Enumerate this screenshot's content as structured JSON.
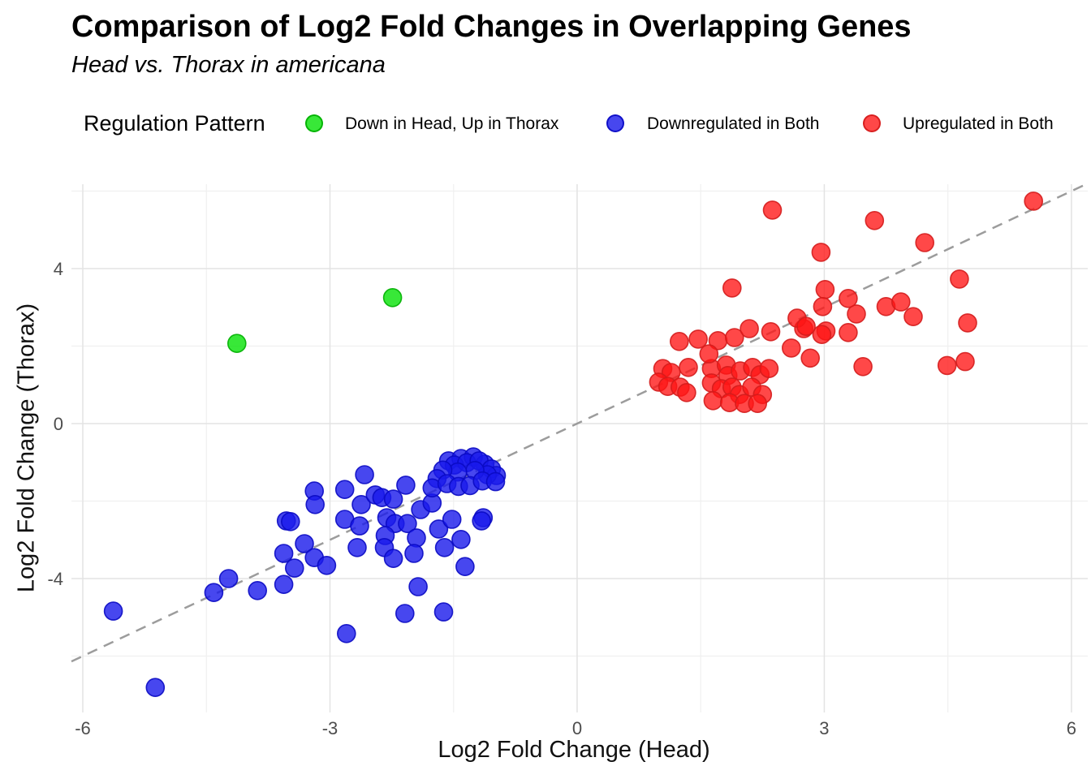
{
  "header": {
    "title": "Comparison of Log2 Fold Changes in Overlapping Genes",
    "subtitle": "Head vs. Thorax in americana"
  },
  "legend": {
    "title": "Regulation Pattern",
    "items": [
      {
        "label": "Down in Head, Up in Thorax",
        "color": "rgba(0,225,0,0.78)",
        "border": "rgba(0,175,0,0.9)"
      },
      {
        "label": "Downregulated in Both",
        "color": "rgba(25,25,235,0.8)",
        "border": "rgba(10,10,195,0.9)"
      },
      {
        "label": "Upregulated in Both",
        "color": "rgba(255,20,20,0.78)",
        "border": "rgba(212,28,28,0.9)"
      }
    ]
  },
  "axes": {
    "x": {
      "label": "Log2 Fold Change (Head)",
      "tick_labels": [
        "-6",
        "-3",
        "0",
        "3",
        "6"
      ]
    },
    "y": {
      "label": "Log2 Fold Change (Thorax)",
      "tick_labels": [
        "4",
        "0",
        "-4"
      ]
    }
  },
  "chart_data": {
    "type": "scatter",
    "title": "Comparison of Log2 Fold Changes in Overlapping Genes",
    "subtitle": "Head vs. Thorax in americana",
    "xlabel": "Log2 Fold Change (Head)",
    "ylabel": "Log2 Fold Change (Thorax)",
    "legend_title": "Regulation Pattern",
    "legend_position": "top",
    "grid": true,
    "xlim": [
      -6.138,
      6.198
    ],
    "ylim": [
      -7.455,
      6.178
    ],
    "x_ticks": [
      -6,
      -3,
      0,
      3,
      6
    ],
    "y_ticks": [
      4,
      0,
      -4
    ],
    "x_minor_gridlines": [
      -4.5,
      -1.5,
      1.5,
      4.5
    ],
    "y_minor_gridlines": [
      6,
      2,
      -2,
      -6
    ],
    "grid_major_color": "#e3e3e3",
    "grid_minor_color": "#f0f0f0",
    "reference_line": {
      "slope": 1,
      "intercept": 0,
      "style": "dashed",
      "color": "#9c9c9c",
      "width": 2.5,
      "dash": [
        13,
        9
      ]
    },
    "point_radius": 11,
    "series": [
      {
        "name": "Down in Head, Up in Thorax",
        "fill": "rgba(0,225,0,0.78)",
        "stroke": "rgba(0,175,0,0.9)",
        "points": [
          [
            -4.13,
            2.07
          ],
          [
            -2.24,
            3.25
          ]
        ]
      },
      {
        "name": "Downregulated in Both",
        "fill": "rgba(25,25,235,0.8)",
        "stroke": "rgba(10,10,195,0.9)",
        "points": [
          [
            -5.63,
            -4.84
          ],
          [
            -5.12,
            -6.81
          ],
          [
            -4.41,
            -4.36
          ],
          [
            -4.23,
            -4.0
          ],
          [
            -3.88,
            -4.31
          ],
          [
            -3.53,
            -2.51
          ],
          [
            -3.19,
            -1.74
          ],
          [
            -3.18,
            -2.09
          ],
          [
            -3.48,
            -2.53
          ],
          [
            -3.56,
            -3.35
          ],
          [
            -3.31,
            -3.1
          ],
          [
            -3.19,
            -3.46
          ],
          [
            -3.43,
            -3.73
          ],
          [
            -3.04,
            -3.66
          ],
          [
            -3.56,
            -4.15
          ],
          [
            -2.82,
            -1.7
          ],
          [
            -2.58,
            -1.32
          ],
          [
            -2.82,
            -2.47
          ],
          [
            -2.64,
            -2.64
          ],
          [
            -2.67,
            -3.2
          ],
          [
            -2.8,
            -5.42
          ],
          [
            -2.62,
            -2.09
          ],
          [
            -2.45,
            -1.84
          ],
          [
            -2.37,
            -1.91
          ],
          [
            -2.23,
            -1.95
          ],
          [
            -2.31,
            -2.43
          ],
          [
            -2.21,
            -2.58
          ],
          [
            -2.33,
            -2.89
          ],
          [
            -2.34,
            -3.2
          ],
          [
            -2.23,
            -3.48
          ],
          [
            -2.08,
            -1.59
          ],
          [
            -2.06,
            -2.58
          ],
          [
            -1.95,
            -2.95
          ],
          [
            -1.98,
            -3.35
          ],
          [
            -1.93,
            -4.21
          ],
          [
            -2.09,
            -4.9
          ],
          [
            -1.62,
            -4.86
          ],
          [
            -1.61,
            -3.2
          ],
          [
            -1.68,
            -2.72
          ],
          [
            -1.52,
            -2.47
          ],
          [
            -1.41,
            -2.99
          ],
          [
            -1.14,
            -2.43
          ],
          [
            -1.9,
            -2.22
          ],
          [
            -1.76,
            -2.05
          ],
          [
            -1.16,
            -2.51
          ],
          [
            -1.36,
            -3.69
          ],
          [
            -1.56,
            -0.96
          ],
          [
            -1.41,
            -0.9
          ],
          [
            -1.26,
            -0.86
          ],
          [
            -1.12,
            -1.05
          ],
          [
            -1.49,
            -1.07
          ],
          [
            -1.34,
            -1.01
          ],
          [
            -1.19,
            -0.96
          ],
          [
            -1.04,
            -1.17
          ],
          [
            -0.98,
            -1.34
          ],
          [
            -1.09,
            -1.32
          ],
          [
            -1.24,
            -1.21
          ],
          [
            -1.45,
            -1.25
          ],
          [
            -1.63,
            -1.2
          ],
          [
            -1.7,
            -1.42
          ],
          [
            -1.76,
            -1.66
          ],
          [
            -1.58,
            -1.55
          ],
          [
            -1.44,
            -1.62
          ],
          [
            -1.3,
            -1.6
          ],
          [
            -1.15,
            -1.48
          ],
          [
            -0.99,
            -1.5
          ]
        ]
      },
      {
        "name": "Upregulated in Both",
        "fill": "rgba(255,20,20,0.78)",
        "stroke": "rgba(212,28,28,0.9)",
        "points": [
          [
            1.24,
            2.12
          ],
          [
            1.47,
            2.18
          ],
          [
            1.71,
            2.14
          ],
          [
            1.91,
            2.22
          ],
          [
            2.09,
            2.45
          ],
          [
            2.35,
            2.37
          ],
          [
            2.6,
            1.95
          ],
          [
            2.83,
            1.69
          ],
          [
            1.04,
            1.42
          ],
          [
            1.14,
            1.32
          ],
          [
            1.35,
            1.45
          ],
          [
            1.63,
            1.42
          ],
          [
            1.81,
            1.51
          ],
          [
            1.83,
            1.24
          ],
          [
            1.98,
            1.36
          ],
          [
            2.13,
            1.45
          ],
          [
            2.22,
            1.26
          ],
          [
            2.33,
            1.42
          ],
          [
            1.6,
            1.8
          ],
          [
            0.99,
            1.07
          ],
          [
            1.1,
            0.96
          ],
          [
            1.25,
            0.94
          ],
          [
            1.33,
            0.8
          ],
          [
            1.63,
            1.05
          ],
          [
            1.75,
            0.9
          ],
          [
            1.88,
            0.94
          ],
          [
            1.97,
            0.75
          ],
          [
            2.12,
            0.94
          ],
          [
            2.25,
            0.75
          ],
          [
            1.65,
            0.59
          ],
          [
            1.85,
            0.54
          ],
          [
            2.03,
            0.52
          ],
          [
            2.19,
            0.52
          ],
          [
            3.02,
            2.39
          ],
          [
            2.97,
            2.3
          ],
          [
            2.75,
            2.45
          ],
          [
            3.29,
            2.35
          ],
          [
            3.39,
            2.83
          ],
          [
            3.75,
            3.02
          ],
          [
            3.93,
            3.14
          ],
          [
            4.08,
            2.76
          ],
          [
            4.74,
            2.6
          ],
          [
            3.47,
            1.47
          ],
          [
            4.49,
            1.5
          ],
          [
            4.71,
            1.6
          ],
          [
            2.37,
            5.51
          ],
          [
            3.61,
            5.24
          ],
          [
            5.54,
            5.74
          ],
          [
            4.22,
            4.67
          ],
          [
            2.96,
            4.42
          ],
          [
            4.64,
            3.73
          ],
          [
            1.88,
            3.5
          ],
          [
            3.01,
            3.46
          ],
          [
            3.29,
            3.23
          ],
          [
            2.98,
            3.02
          ],
          [
            2.67,
            2.72
          ],
          [
            2.78,
            2.51
          ]
        ]
      }
    ]
  }
}
